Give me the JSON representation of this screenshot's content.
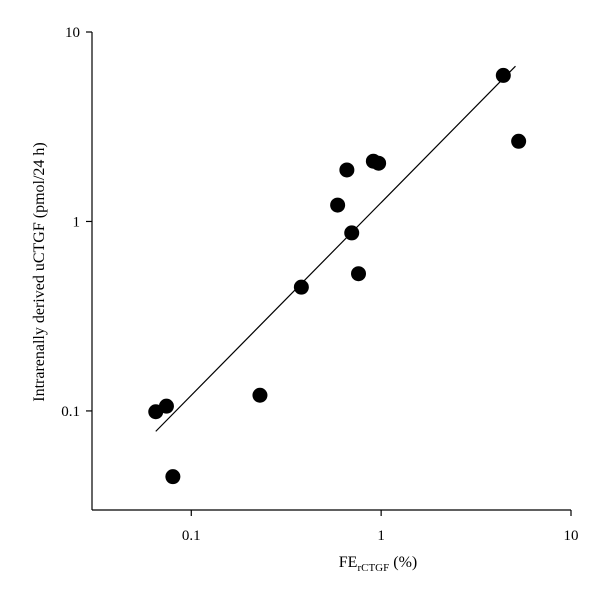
{
  "chart_data": {
    "type": "scatter",
    "title": "",
    "xlabel": {
      "main": "FE",
      "subscript": "rCTGF",
      "suffix": " (%)"
    },
    "ylabel": "Intrarenally derived uCTGF (pmol/24 h)",
    "xscale": "log",
    "yscale": "log",
    "xlim": [
      0.03,
      10
    ],
    "ylim": [
      0.03,
      10
    ],
    "x_ticks": [
      {
        "value": 0.1,
        "label": "0.1"
      },
      {
        "value": 1,
        "label": "1"
      },
      {
        "value": 10,
        "label": "10"
      }
    ],
    "y_ticks": [
      {
        "value": 0.1,
        "label": "0.1"
      },
      {
        "value": 1,
        "label": "1"
      },
      {
        "value": 10,
        "label": "10"
      }
    ],
    "grid": false,
    "legend": "none",
    "points": [
      {
        "x": 0.065,
        "y": 0.099
      },
      {
        "x": 0.074,
        "y": 0.106
      },
      {
        "x": 0.08,
        "y": 0.045
      },
      {
        "x": 0.23,
        "y": 0.121
      },
      {
        "x": 0.38,
        "y": 0.45
      },
      {
        "x": 0.59,
        "y": 1.22
      },
      {
        "x": 0.66,
        "y": 1.87
      },
      {
        "x": 0.7,
        "y": 0.87
      },
      {
        "x": 0.76,
        "y": 0.53
      },
      {
        "x": 0.91,
        "y": 2.08
      },
      {
        "x": 0.97,
        "y": 2.03
      },
      {
        "x": 4.4,
        "y": 5.9
      },
      {
        "x": 5.3,
        "y": 2.65
      }
    ],
    "fit_line": {
      "x": [
        0.065,
        5.1
      ],
      "y": [
        0.078,
        6.6
      ]
    },
    "colors": {
      "marker": "#000000",
      "line": "#000000",
      "background": "#ffffff"
    }
  }
}
